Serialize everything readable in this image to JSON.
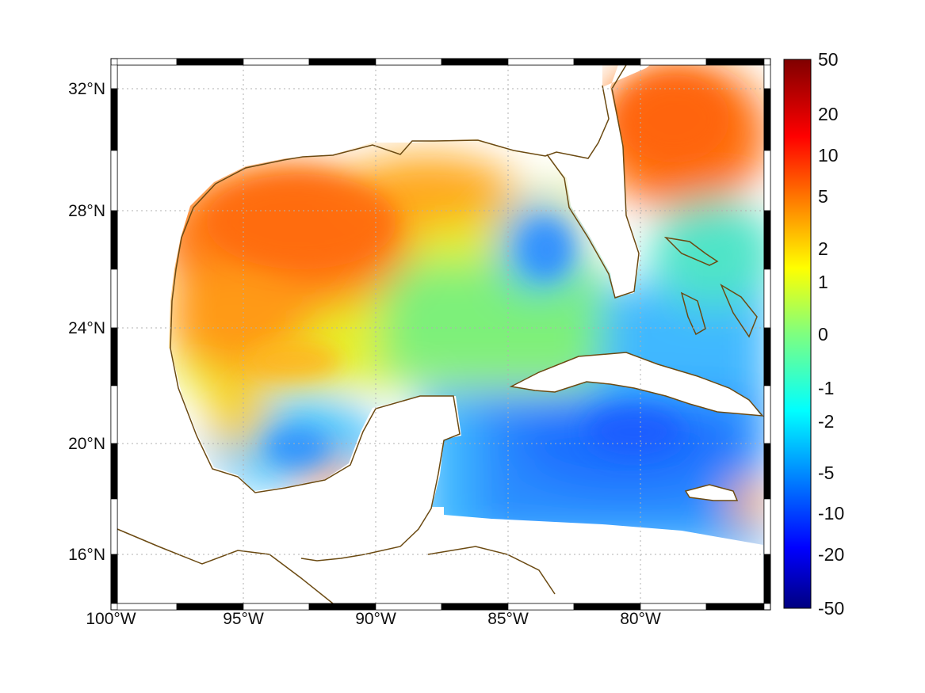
{
  "map": {
    "lon_ticks": [
      "100°W",
      "95°W",
      "90°W",
      "85°W",
      "80°W"
    ],
    "lat_ticks": [
      "32°N",
      "28°N",
      "24°N",
      "20°N",
      "16°N"
    ],
    "extent": {
      "lon": [
        -100,
        -75.2
      ],
      "lat": [
        14.2,
        33.0
      ]
    },
    "projection": "mercator",
    "grid": "dotted",
    "frame": "alternating black-white",
    "coastline_color": "#6b4a12",
    "land_color": "#ffffff"
  },
  "colorbar": {
    "labels": [
      "50",
      "20",
      "10",
      "5",
      "2",
      "1",
      "0",
      "-1",
      "-2",
      "-5",
      "-10",
      "-20",
      "-50"
    ],
    "colormap": "jet",
    "placement": "right"
  }
}
